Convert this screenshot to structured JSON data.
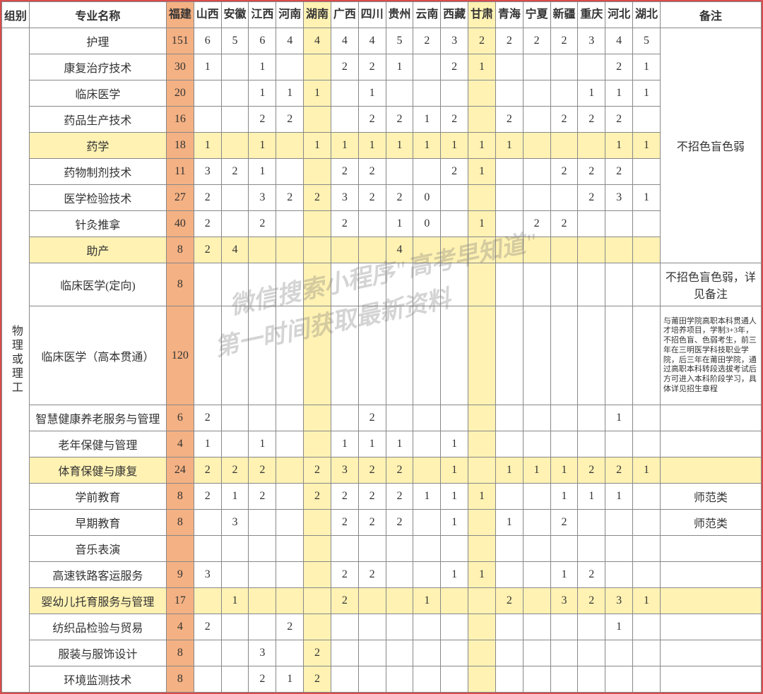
{
  "headers": {
    "group": "组别",
    "name": "专业名称",
    "provinces": [
      "福建",
      "山西",
      "安徽",
      "江西",
      "河南",
      "湖南",
      "广西",
      "四川",
      "贵州",
      "云南",
      "西藏",
      "甘肃",
      "青海",
      "宁夏",
      "新疆",
      "重庆",
      "河北",
      "湖北"
    ],
    "note": "备注"
  },
  "group_label": "物理或理工",
  "highlight_cols": {
    "fujian": 0,
    "hunan": 5,
    "gansu": 11
  },
  "highlight_rows": [
    4,
    8,
    13,
    18
  ],
  "colors": {
    "border": "#d94c4c",
    "orange": "#f4b183",
    "yellow": "#fff2b3"
  },
  "watermark": {
    "line1": "微信搜索小程序\"高考早知道\"",
    "line2": "第一时间获取最新资料"
  },
  "rows": [
    {
      "name": "护理",
      "v": [
        "151",
        "6",
        "5",
        "6",
        "4",
        "4",
        "4",
        "4",
        "5",
        "2",
        "3",
        "2",
        "2",
        "2",
        "2",
        "3",
        "4",
        "5"
      ],
      "note": ""
    },
    {
      "name": "康复治疗技术",
      "v": [
        "30",
        "1",
        "",
        "1",
        "",
        "",
        "2",
        "2",
        "1",
        "",
        "2",
        "1",
        "",
        "",
        "",
        "",
        "2",
        "1"
      ],
      "note": ""
    },
    {
      "name": "临床医学",
      "v": [
        "20",
        "",
        "",
        "1",
        "1",
        "1",
        "",
        "1",
        "",
        "",
        "",
        "",
        "",
        "",
        "",
        "1",
        "1",
        "1"
      ],
      "note": ""
    },
    {
      "name": "药品生产技术",
      "v": [
        "16",
        "",
        "",
        "2",
        "2",
        "",
        "",
        "2",
        "2",
        "1",
        "2",
        "",
        "2",
        "",
        "2",
        "2",
        "2",
        ""
      ],
      "note": ""
    },
    {
      "name": "药学",
      "v": [
        "18",
        "1",
        "",
        "1",
        "",
        "1",
        "1",
        "1",
        "1",
        "1",
        "1",
        "1",
        "1",
        "",
        "",
        "",
        "1",
        "1"
      ],
      "note": "不招色盲色弱"
    },
    {
      "name": "药物制剂技术",
      "v": [
        "11",
        "3",
        "2",
        "1",
        "",
        "",
        "2",
        "2",
        "",
        "",
        "2",
        "1",
        "",
        "",
        "2",
        "2",
        "2",
        ""
      ],
      "note": ""
    },
    {
      "name": "医学检验技术",
      "v": [
        "27",
        "2",
        "",
        "3",
        "2",
        "2",
        "3",
        "2",
        "2",
        "0",
        "",
        "",
        "",
        "",
        "",
        "2",
        "3",
        "1"
      ],
      "note": ""
    },
    {
      "name": "针灸推拿",
      "v": [
        "40",
        "2",
        "",
        "2",
        "",
        "",
        "2",
        "",
        "1",
        "0",
        "",
        "1",
        "",
        "2",
        "2",
        "",
        "",
        ""
      ],
      "note": ""
    },
    {
      "name": "助产",
      "v": [
        "8",
        "2",
        "4",
        "",
        "",
        "",
        "",
        "",
        "4",
        "",
        "",
        "",
        "",
        "",
        "",
        "",
        "",
        ""
      ],
      "note": ""
    },
    {
      "name": "临床医学(定向)",
      "v": [
        "8",
        "",
        "",
        "",
        "",
        "",
        "",
        "",
        "",
        "",
        "",
        "",
        "",
        "",
        "",
        "",
        "",
        ""
      ],
      "note": "不招色盲色弱，详见备注"
    },
    {
      "name": "临床医学（高本贯通）",
      "v": [
        "120",
        "",
        "",
        "",
        "",
        "",
        "",
        "",
        "",
        "",
        "",
        "",
        "",
        "",
        "",
        "",
        "",
        ""
      ],
      "note": "与莆田学院高职本科贯通人才培养项目，学制3+3年，不招色盲、色弱考生，前三年在三明医学科技职业学院，后三年在莆田学院，通过高职本科转段选拔考试后方可进入本科阶段学习，具体详见招生章程"
    },
    {
      "name": "智慧健康养老服务与管理",
      "v": [
        "6",
        "2",
        "",
        "",
        "",
        "",
        "",
        "2",
        "",
        "",
        "",
        "",
        "",
        "",
        "",
        "",
        "1",
        ""
      ],
      "note": ""
    },
    {
      "name": "老年保健与管理",
      "v": [
        "4",
        "1",
        "",
        "1",
        "",
        "",
        "1",
        "1",
        "1",
        "",
        "1",
        "",
        "",
        "",
        "",
        "",
        "",
        ""
      ],
      "note": ""
    },
    {
      "name": "体育保健与康复",
      "v": [
        "24",
        "2",
        "2",
        "2",
        "",
        "2",
        "3",
        "2",
        "2",
        "",
        "1",
        "",
        "1",
        "1",
        "1",
        "2",
        "2",
        "1"
      ],
      "note": ""
    },
    {
      "name": "学前教育",
      "v": [
        "8",
        "2",
        "1",
        "2",
        "",
        "2",
        "2",
        "2",
        "2",
        "1",
        "1",
        "1",
        "",
        "",
        "1",
        "1",
        "1",
        ""
      ],
      "note": "师范类"
    },
    {
      "name": "早期教育",
      "v": [
        "8",
        "",
        "3",
        "",
        "",
        "",
        "2",
        "2",
        "2",
        "",
        "1",
        "",
        "1",
        "",
        "2",
        "",
        "",
        ""
      ],
      "note": "师范类"
    },
    {
      "name": "音乐表演",
      "v": [
        "",
        "",
        "",
        "",
        "",
        "",
        "",
        "",
        "",
        "",
        "",
        "",
        "",
        "",
        "",
        "",
        "",
        ""
      ],
      "note": ""
    },
    {
      "name": "高速铁路客运服务",
      "v": [
        "9",
        "3",
        "",
        "",
        "",
        "",
        "2",
        "2",
        "",
        "",
        "1",
        "1",
        "",
        "",
        "1",
        "2",
        "",
        ""
      ],
      "note": ""
    },
    {
      "name": "婴幼儿托育服务与管理",
      "v": [
        "17",
        "",
        "1",
        "",
        "",
        "",
        "2",
        "",
        "",
        "1",
        "",
        "",
        "2",
        "",
        "3",
        "2",
        "3",
        "1"
      ],
      "note": ""
    },
    {
      "name": "纺织品检验与贸易",
      "v": [
        "4",
        "2",
        "",
        "",
        "2",
        "",
        "",
        "",
        "",
        "",
        "",
        "",
        "",
        "",
        "",
        "",
        "1",
        ""
      ],
      "note": ""
    },
    {
      "name": "服装与服饰设计",
      "v": [
        "8",
        "",
        "",
        "3",
        "",
        "2",
        "",
        "",
        "",
        "",
        "",
        "",
        "",
        "",
        "",
        "",
        "",
        ""
      ],
      "note": ""
    },
    {
      "name": "环境监测技术",
      "v": [
        "8",
        "",
        "",
        "2",
        "1",
        "2",
        "",
        "",
        "",
        "",
        "",
        "",
        "",
        "",
        "",
        "",
        "",
        ""
      ],
      "note": ""
    }
  ],
  "note_merge": {
    "start": 0,
    "end": 8,
    "text": "不招色盲色弱"
  }
}
